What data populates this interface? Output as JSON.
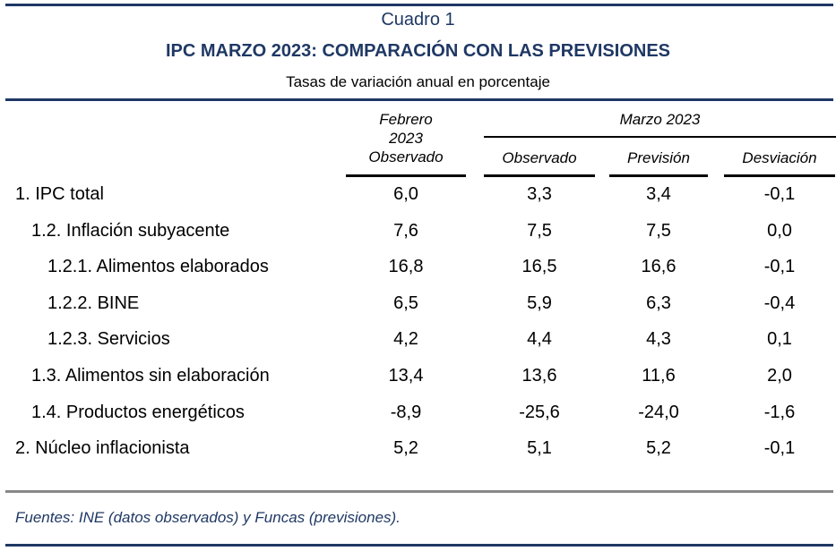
{
  "cuadro": "Cuadro 1",
  "title": "IPC MARZO 2023: COMPARACIÓN CON LAS PREVISIONES",
  "subtitle": "Tasas de variación anual en porcentaje",
  "headers": {
    "feb_line1": "Febrero",
    "feb_line2": "2023",
    "feb_line3": "Observado",
    "marzo_group": "Marzo 2023",
    "observado": "Observado",
    "prevision": "Previsión",
    "desviacion": "Desviación"
  },
  "rows": [
    {
      "label": "1. IPC total",
      "indent": 0,
      "values": [
        "6,0",
        "3,3",
        "3,4",
        "-0,1"
      ]
    },
    {
      "label": "1.2. Inflación subyacente",
      "indent": 1,
      "values": [
        "7,6",
        "7,5",
        "7,5",
        "0,0"
      ]
    },
    {
      "label": "1.2.1. Alimentos elaborados",
      "indent": 2,
      "values": [
        "16,8",
        "16,5",
        "16,6",
        "-0,1"
      ]
    },
    {
      "label": "1.2.2. BINE",
      "indent": 2,
      "values": [
        "6,5",
        "5,9",
        "6,3",
        "-0,4"
      ]
    },
    {
      "label": "1.2.3. Servicios",
      "indent": 2,
      "values": [
        "4,2",
        "4,4",
        "4,3",
        "0,1"
      ]
    },
    {
      "label": "1.3. Alimentos sin elaboración",
      "indent": 1,
      "values": [
        "13,4",
        "13,6",
        "11,6",
        "2,0"
      ]
    },
    {
      "label": "1.4. Productos energéticos",
      "indent": 1,
      "values": [
        "-8,9",
        "-25,6",
        "-24,0",
        "-1,6"
      ]
    },
    {
      "label": "2. Núcleo inflacionista",
      "indent": 0,
      "values": [
        "5,2",
        "5,1",
        "5,2",
        "-0,1"
      ]
    }
  ],
  "source": "Fuentes: INE (datos observados) y Funcas (previsiones)."
}
